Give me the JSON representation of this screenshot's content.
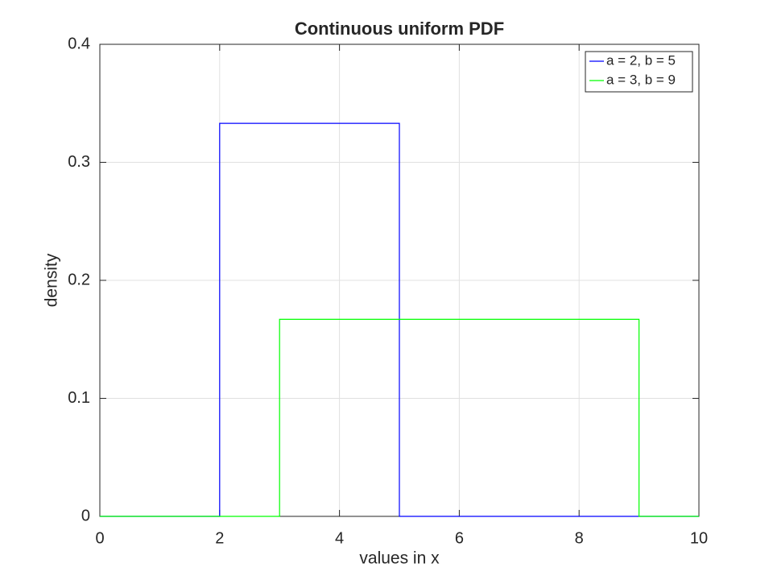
{
  "chart_data": {
    "type": "line",
    "title": "Continuous uniform PDF",
    "xlabel": "values in x",
    "ylabel": "density",
    "series": [
      {
        "name": "a = 2, b = 5",
        "color": "#0000ff",
        "x": [
          0,
          2,
          2,
          5,
          5,
          10
        ],
        "values": [
          0,
          0,
          0.333,
          0.333,
          0,
          0
        ]
      },
      {
        "name": "a = 3, b = 9",
        "color": "#00ff00",
        "x": [
          0,
          3,
          3,
          9,
          9,
          10
        ],
        "values": [
          0,
          0,
          0.167,
          0.167,
          0,
          0
        ]
      }
    ],
    "xlim": [
      0,
      10
    ],
    "xticks": [
      0,
      2,
      4,
      6,
      8,
      10
    ],
    "ylim": [
      0,
      0.4
    ],
    "yticks": [
      0,
      0.1,
      0.2,
      0.3,
      0.4
    ],
    "grid": true,
    "legend": "top-right"
  }
}
